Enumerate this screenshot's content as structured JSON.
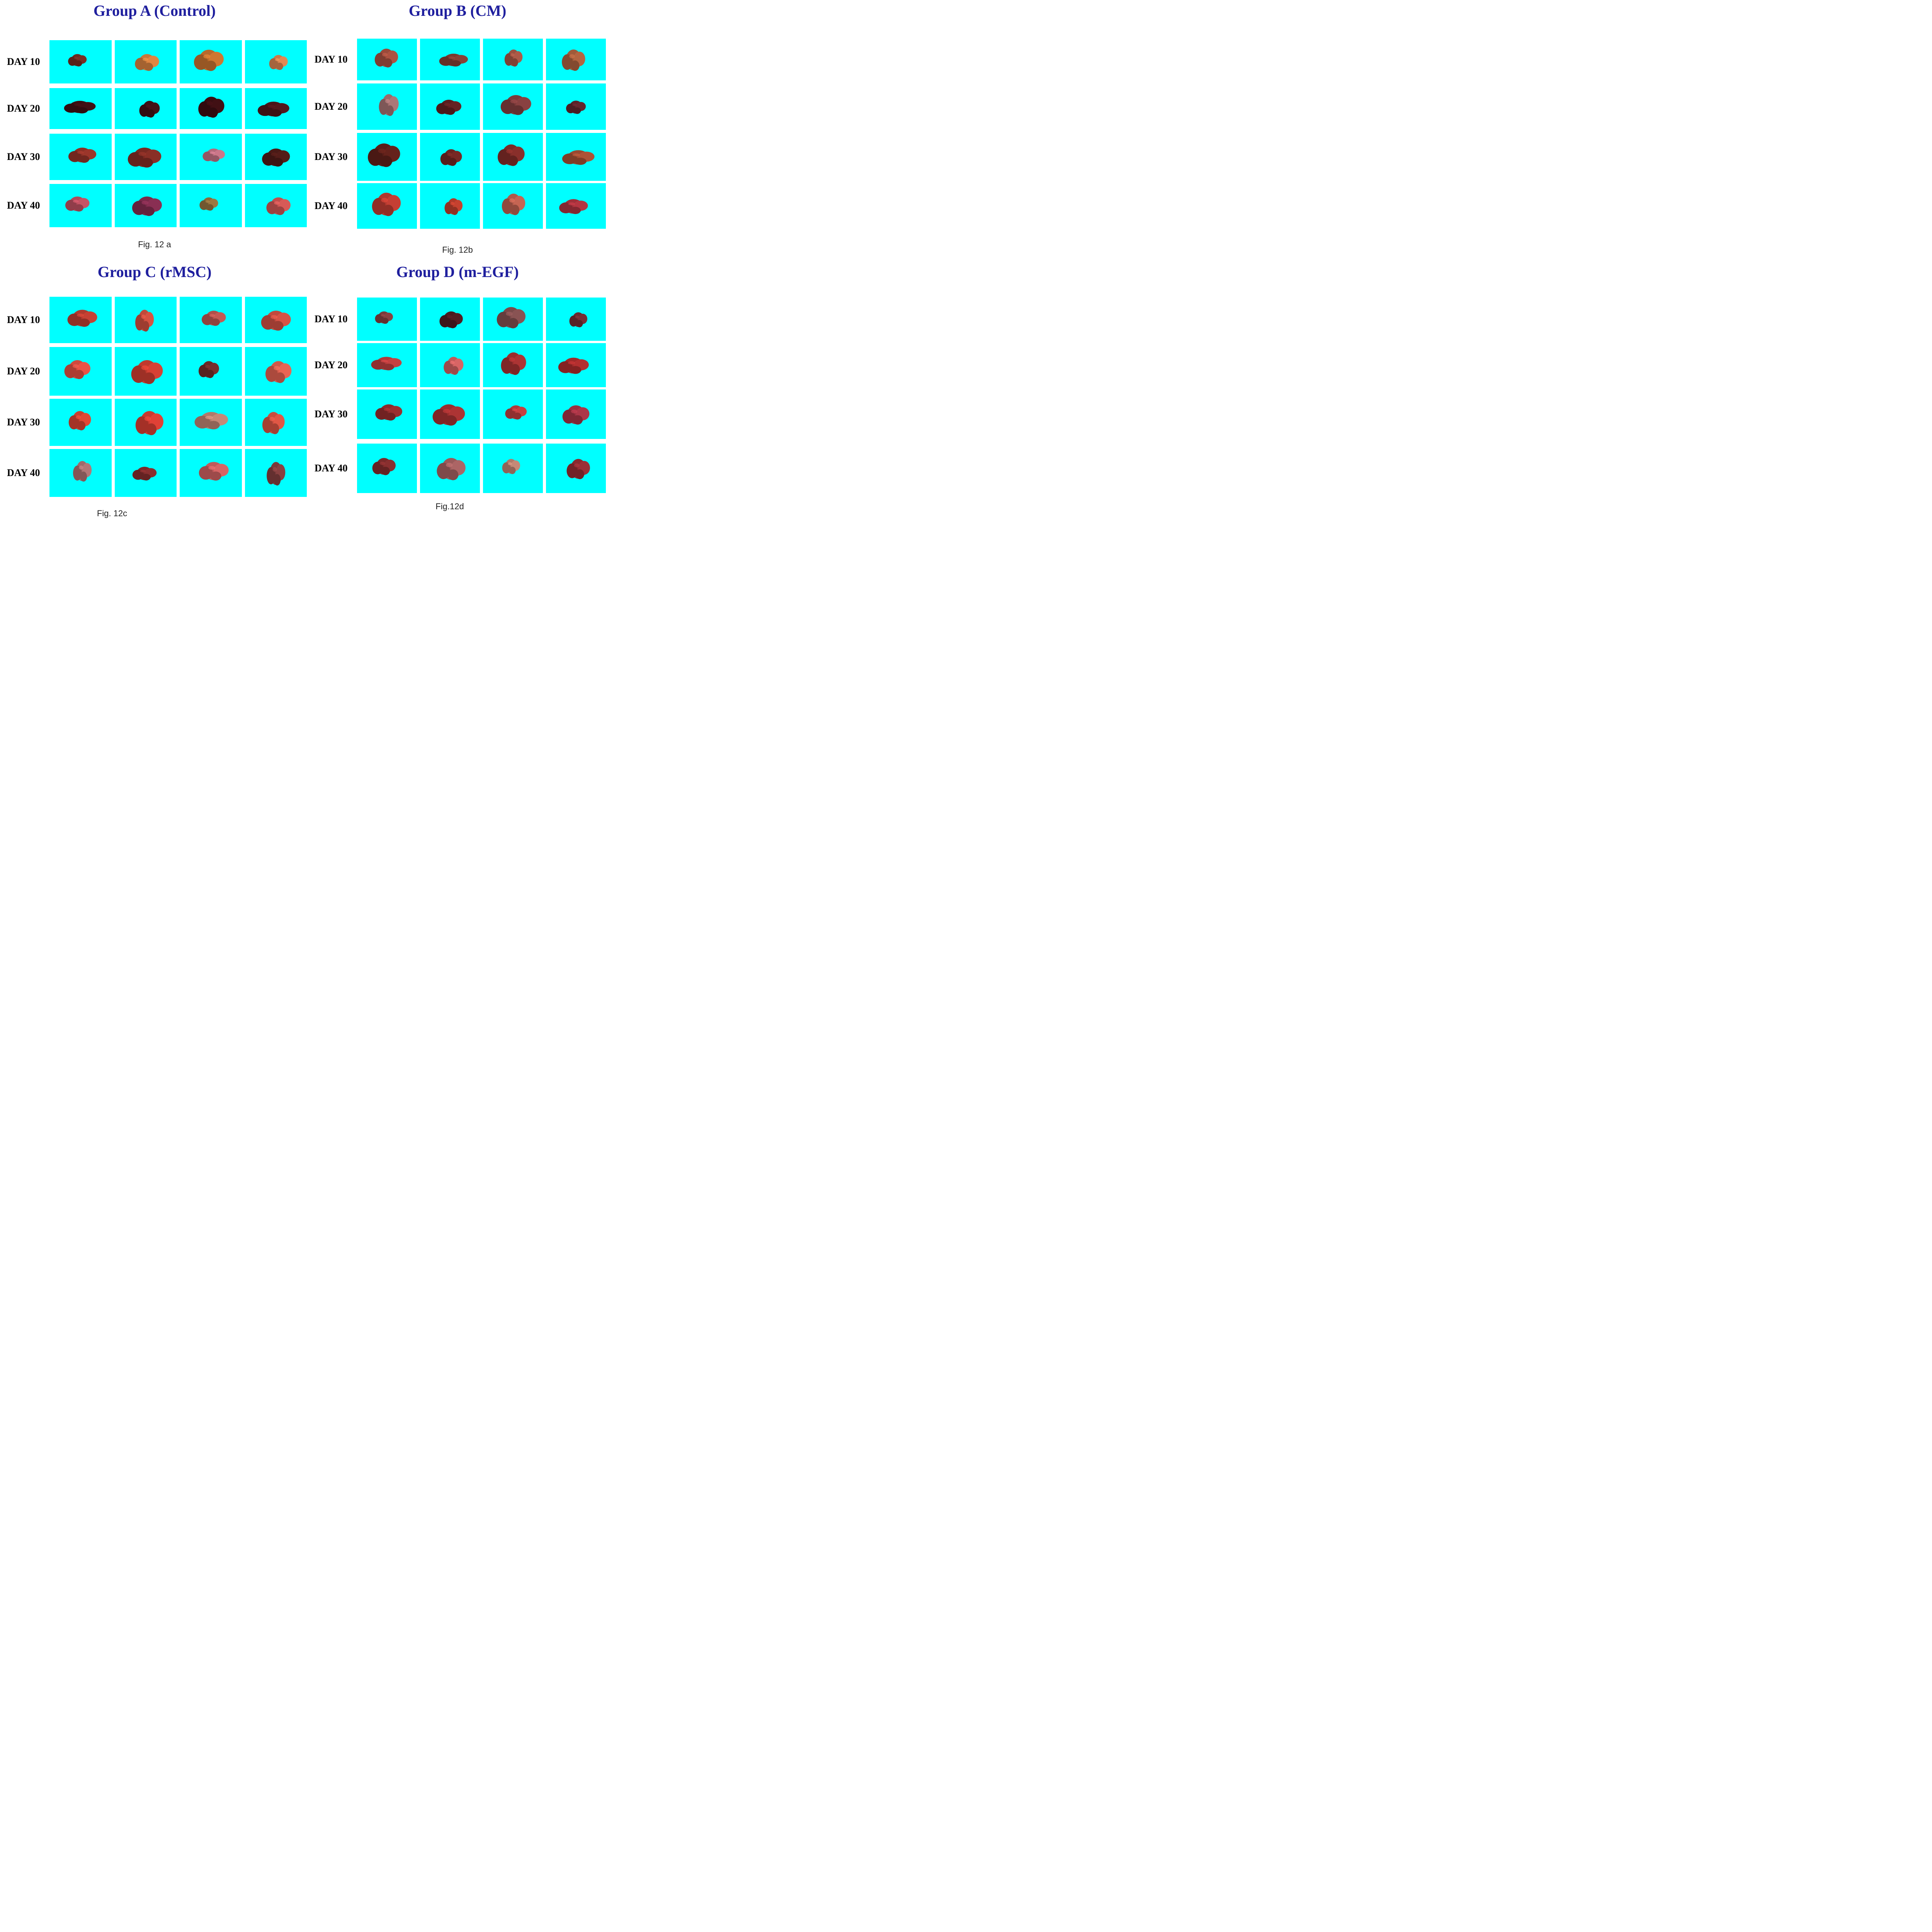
{
  "panels": [
    {
      "title": "Group A (Control)",
      "caption": "Fig. 12 a",
      "rows": [
        {
          "label": "DAY 10",
          "organs": [
            "#6b2a1f",
            "#c8783a",
            "#b86a2c",
            "#c97a4a"
          ]
        },
        {
          "label": "DAY 20",
          "organs": [
            "#3a0f12",
            "#3d1014",
            "#3a0e12",
            "#4a1518"
          ]
        },
        {
          "label": "DAY 30",
          "organs": [
            "#8a3026",
            "#7a2a22",
            "#b46a7a",
            "#4a1a16"
          ]
        },
        {
          "label": "DAY 40",
          "organs": [
            "#b04a5a",
            "#7a2a4a",
            "#8a6a3a",
            "#c0504e"
          ]
        }
      ]
    },
    {
      "title": "Group B (CM)",
      "caption": "Fig. 12b",
      "rows": [
        {
          "label": "DAY 10",
          "organs": [
            "#9a4a3a",
            "#7a3a30",
            "#9a5040",
            "#a05a3a"
          ]
        },
        {
          "label": "DAY 20",
          "organs": [
            "#9a6a6a",
            "#5a1e20",
            "#7a3a3a",
            "#5a2228"
          ]
        },
        {
          "label": "DAY 30",
          "organs": [
            "#5a1e18",
            "#6a2420",
            "#7a2a26",
            "#9a4a30"
          ]
        },
        {
          "label": "DAY 40",
          "organs": [
            "#b0382e",
            "#b03a2a",
            "#b05a4a",
            "#a0303a"
          ]
        }
      ]
    },
    {
      "title": "Group C (rMSC)",
      "caption": "Fig. 12c",
      "rows": [
        {
          "label": "DAY 10",
          "organs": [
            "#b03a2e",
            "#c04a3a",
            "#b0504a",
            "#c04a3e"
          ]
        },
        {
          "label": "DAY 20",
          "organs": [
            "#d04a3e",
            "#c03a2e",
            "#6a2a26",
            "#d05a4a"
          ]
        },
        {
          "label": "DAY 30",
          "organs": [
            "#c8402e",
            "#c83a30",
            "#b07a6a",
            "#c84e3e"
          ]
        },
        {
          "label": "DAY 40",
          "organs": [
            "#a06a6a",
            "#7a2a2a",
            "#c05a5a",
            "#7a3a3a"
          ]
        }
      ]
    },
    {
      "title": "Group D (m-EGF)",
      "caption": "Fig.12d",
      "rows": [
        {
          "label": "DAY 10",
          "organs": [
            "#7a3a3a",
            "#4a1a1e",
            "#7a4a4a",
            "#6a2a2e"
          ]
        },
        {
          "label": "DAY 20",
          "organs": [
            "#b03a3a",
            "#c05a5a",
            "#9a2e2e",
            "#a02a2a"
          ]
        },
        {
          "label": "DAY 30",
          "organs": [
            "#8a2a2a",
            "#9a2e2e",
            "#b03a3a",
            "#9a3040"
          ]
        },
        {
          "label": "DAY 40",
          "organs": [
            "#7a2a2a",
            "#9a5a5a",
            "#b07a6a",
            "#8a2a30"
          ]
        }
      ]
    }
  ]
}
